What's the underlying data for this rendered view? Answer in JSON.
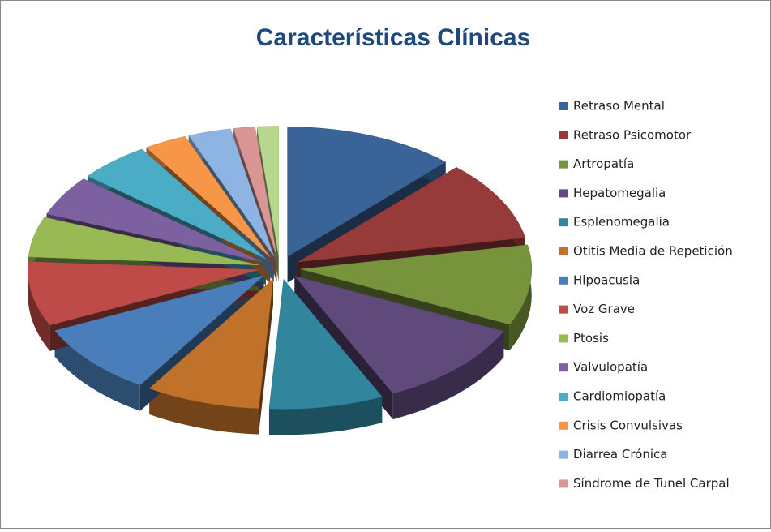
{
  "chart_data": {
    "type": "pie",
    "title": "Características Clínicas",
    "categories": [
      "Retraso Mental",
      "Retraso Psicomotor",
      "Artropatía",
      "Hepatomegalia",
      "Esplenomegalia",
      "Otitis Media de Repetición",
      "Hipoacusia",
      "Voz Grave",
      "Ptosis",
      "Valvulopatía",
      "Cardiomiopatía",
      "Crisis Convulsivas",
      "Diarrea Crónica",
      "Síndrome de Tunel Carpal",
      null
    ],
    "values": [
      12,
      10,
      10,
      11,
      8,
      8,
      9,
      8,
      5,
      5,
      5,
      3,
      3,
      1.5,
      1.5
    ],
    "colors": [
      "#3a6398",
      "#963a3a",
      "#77933c",
      "#5f4a7b",
      "#31859c",
      "#c0712a",
      "#4a7ebb",
      "#be4b48",
      "#98b954",
      "#7d60a0",
      "#4bacc6",
      "#f79646",
      "#8eb4e3",
      "#d99694",
      "#b7d78f"
    ],
    "legend": "right"
  }
}
